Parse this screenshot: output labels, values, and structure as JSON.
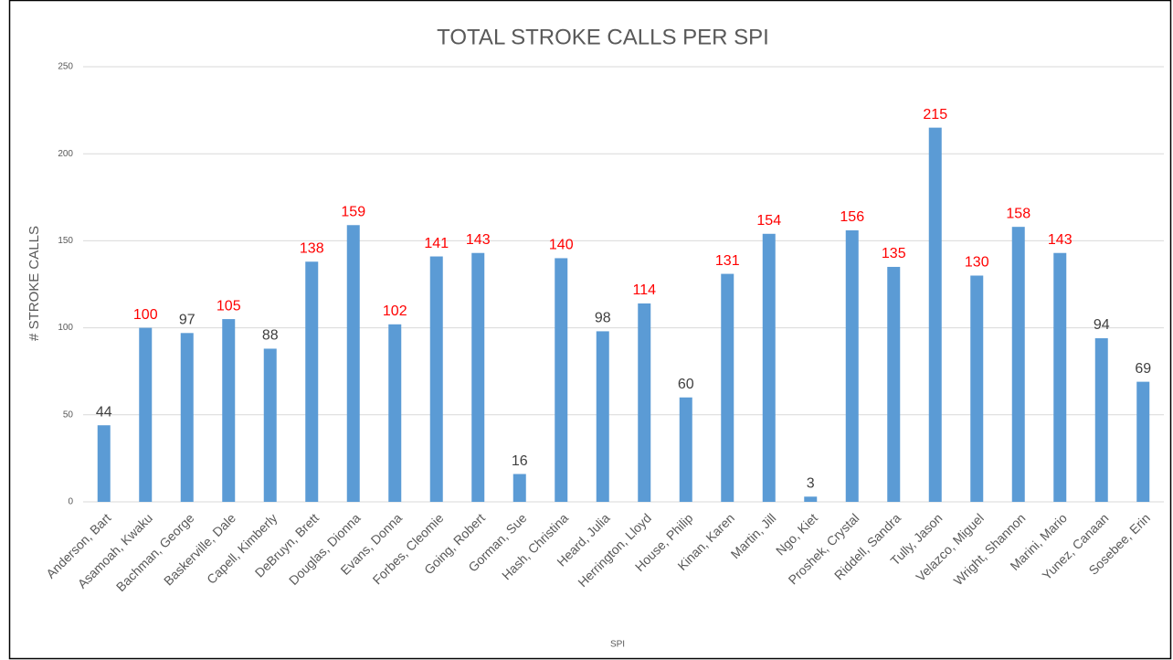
{
  "chart_data": {
    "type": "bar",
    "title": "TOTAL STROKE CALLS PER SPI",
    "x_label": "SPI",
    "y_label": "# STROKE CALLS",
    "categories": [
      "Anderson, Bart",
      "Asamoah, Kwaku",
      "Bachman, George",
      "Baskerville, Dale",
      "Capell, Kimberly",
      "DeBruyn, Brett",
      "Douglas, Dionna",
      "Evans, Donna",
      "Forbes, Cleomie",
      "Going, Robert",
      "Gorman, Sue",
      "Hash, Christina",
      "Heard, Julia",
      "Herrington, Lloyd",
      "House, Philip",
      "Kinan, Karen",
      "Martin, Jill",
      "Ngo, Kiet",
      "Proshek, Crystal",
      "Riddell, Sandra",
      "Tully, Jason",
      "Velazco, Miguel",
      "Wright, Shannon",
      "Marini, Mario",
      "Yunez, Canaan",
      "Sosebee, Erin"
    ],
    "values": [
      44,
      100,
      97,
      105,
      88,
      138,
      159,
      102,
      141,
      143,
      16,
      140,
      98,
      114,
      60,
      131,
      154,
      3,
      156,
      135,
      215,
      130,
      158,
      143,
      94,
      69
    ],
    "color": "#5b9bd5",
    "value_label_colors": [
      "#404040",
      "#ff0000",
      "#404040",
      "#ff0000",
      "#404040",
      "#ff0000",
      "#ff0000",
      "#ff0000",
      "#ff0000",
      "#ff0000",
      "#404040",
      "#ff0000",
      "#404040",
      "#ff0000",
      "#404040",
      "#ff0000",
      "#ff0000",
      "#404040",
      "#ff0000",
      "#ff0000",
      "#ff0000",
      "#ff0000",
      "#ff0000",
      "#ff0000",
      "#404040",
      "#404040"
    ],
    "ylim": [
      0,
      250
    ],
    "yticks": [
      0,
      50,
      100,
      150,
      200,
      250
    ],
    "grid": true
  }
}
